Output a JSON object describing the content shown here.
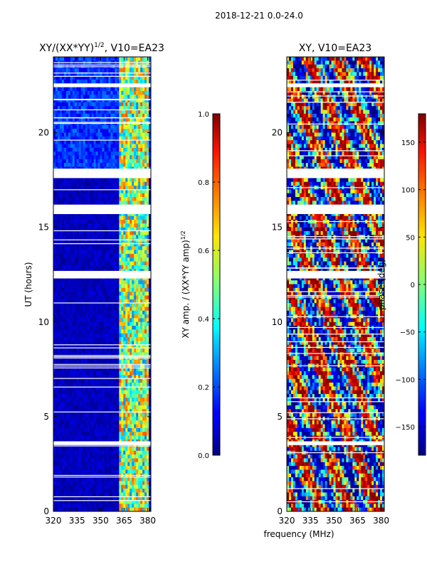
{
  "figure": {
    "suptitle": "2018-12-21 0.0-24.0",
    "xlabel": "frequency (MHz)"
  },
  "chart_data": [
    {
      "type": "heatmap",
      "title_main": "XY/(XX*YY)",
      "title_exp": "1/2",
      "title_tail": ", V10=EA23",
      "ylabel": "UT (hours)",
      "x": {
        "min": 320,
        "max": 382,
        "ticks": [
          320,
          335,
          350,
          365,
          380
        ]
      },
      "y": {
        "min": 0,
        "max": 24,
        "ticks": [
          0,
          5,
          10,
          15,
          20
        ]
      },
      "colorbar": {
        "label_main": "XY amp. / (XX*YY amp)",
        "label_exp": "1/2",
        "min": 0.0,
        "max": 1.0,
        "ticks": [
          "0.0",
          "0.2",
          "0.4",
          "0.6",
          "0.8",
          "1.0"
        ]
      },
      "colormap": "jet",
      "data_gaps_hours": [
        [
          3.5,
          3.7
        ],
        [
          12.3,
          12.7
        ],
        [
          15.7,
          16.2
        ],
        [
          17.6,
          18.1
        ],
        [
          22.4,
          22.6
        ]
      ],
      "active_band_mhz": [
        362,
        380
      ]
    },
    {
      "type": "heatmap",
      "title": "XY, V10=EA23",
      "x": {
        "min": 320,
        "max": 382,
        "ticks": [
          320,
          335,
          350,
          365,
          380
        ]
      },
      "y": {
        "min": 0,
        "max": 24,
        "ticks": [
          0,
          5,
          10,
          15,
          20
        ]
      },
      "colorbar": {
        "label": "phase (deg)",
        "min": -180,
        "max": 180,
        "ticks": [
          "−150",
          "−100",
          "−50",
          "0",
          "50",
          "100",
          "150"
        ]
      },
      "colormap": "jet",
      "data_gaps_hours": [
        [
          3.5,
          3.7
        ],
        [
          12.3,
          12.7
        ],
        [
          15.7,
          16.2
        ],
        [
          17.6,
          18.1
        ],
        [
          22.4,
          22.6
        ]
      ]
    }
  ]
}
